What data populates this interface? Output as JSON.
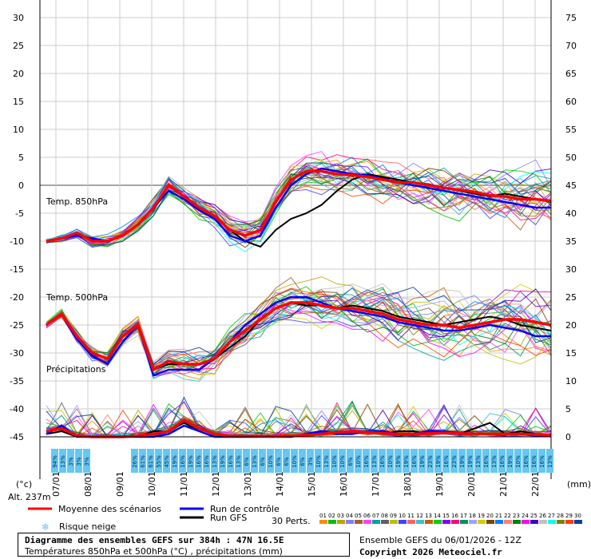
{
  "chart_data": {
    "type": "line",
    "left_axis": {
      "ticks": [
        30,
        25,
        20,
        15,
        10,
        5,
        0,
        -5,
        -10,
        -15,
        -20,
        -25,
        -30,
        -35,
        -40,
        -45
      ],
      "unit": "(°c)"
    },
    "right_axis": {
      "ticks": [
        75,
        70,
        65,
        60,
        55,
        50,
        45,
        40,
        35,
        30,
        25,
        20,
        15,
        10,
        5,
        0
      ],
      "unit": "(mm)"
    },
    "x_dates": [
      "07/01",
      "08/01",
      "09/01",
      "10/01",
      "11/01",
      "12/01",
      "13/01",
      "14/01",
      "15/01",
      "16/01",
      "17/01",
      "18/01",
      "19/01",
      "20/01",
      "21/01",
      "22/01"
    ],
    "panel_labels": {
      "t850": "Temp. 850hPa",
      "t500": "Temp. 500hPa",
      "precip": "Précipitations"
    },
    "altitude": "Alt. 237m",
    "snow_risk_percent_1": [
      "94%",
      "13%",
      "3%",
      "3%",
      "3%"
    ],
    "snow_risk_percent_2": [
      "26%",
      "61%",
      "61%",
      "55%",
      "45%",
      "19%",
      "16%",
      "19%",
      "16%",
      "16%",
      "13%",
      "19%",
      "16%",
      "13%",
      "6%",
      "13%",
      "6%",
      "10%",
      "6%",
      "6%",
      "10%",
      "6%",
      "3%",
      "10%",
      "13%",
      "10%",
      "10%",
      "6%",
      "10%",
      "16%",
      "13%",
      "16%",
      "10%",
      "19%",
      "19%",
      "16%",
      "19%",
      "23%",
      "19%",
      "16%",
      "23%",
      "19%",
      "19%",
      "13%",
      "16%",
      "13%",
      "16%",
      "19%",
      "10%",
      "16%",
      "16%",
      "16%",
      "13%"
    ],
    "t850_mean": [
      -10,
      -9.5,
      -8.5,
      -10,
      -10,
      -9,
      -7,
      -4,
      0,
      -2,
      -4,
      -5.5,
      -8,
      -9,
      -8,
      -3,
      1,
      2.5,
      2.5,
      2,
      1.8,
      1.5,
      1,
      0.5,
      0.5,
      0,
      -0.5,
      -0.8,
      -1.2,
      -1.8,
      -2,
      -2.5,
      -2.5,
      -2.8
    ],
    "t850_control": [
      -10,
      -9.5,
      -9,
      -9.5,
      -10,
      -9,
      -7,
      -4,
      -1,
      -2.5,
      -4.5,
      -6,
      -9,
      -10,
      -9,
      -4,
      0,
      2,
      3,
      2.5,
      2,
      1.8,
      1.2,
      0.5,
      0,
      -0.5,
      -1,
      -1.5,
      -2,
      -2.5,
      -3,
      -3.5,
      -4,
      -4
    ],
    "t850_gfs": [
      -10,
      -9.5,
      -8.8,
      -9.8,
      -10,
      -9,
      -7,
      -4,
      0,
      -2,
      -4,
      -5.5,
      -8,
      -10,
      -11,
      -8,
      -6,
      -5,
      -3.5,
      -1,
      1,
      2,
      1.5,
      1,
      0.5,
      0.2,
      -0.5,
      -1,
      -1.5,
      -2,
      -1.5,
      -2,
      -2.5,
      -3
    ],
    "t500_mean": [
      -25,
      -23,
      -27,
      -30,
      -31,
      -27,
      -25,
      -33,
      -31.5,
      -32,
      -32,
      -31,
      -28,
      -26,
      -24,
      -22,
      -21,
      -21,
      -21.5,
      -22,
      -22,
      -22.5,
      -23,
      -24,
      -24.5,
      -25,
      -25,
      -25.5,
      -25,
      -24.5,
      -24,
      -24,
      -24.5,
      -25
    ],
    "t500_control": [
      -25,
      -23,
      -27.5,
      -30.5,
      -32,
      -28,
      -25,
      -34,
      -33,
      -33,
      -33,
      -31,
      -28,
      -25,
      -23,
      -21,
      -20,
      -20,
      -21,
      -22,
      -22.5,
      -23,
      -23.5,
      -24.5,
      -25,
      -25.5,
      -26,
      -26,
      -25.5,
      -25,
      -25.5,
      -26,
      -27,
      -27
    ],
    "t500_gfs": [
      -25,
      -23,
      -27,
      -30,
      -31,
      -27,
      -25,
      -33,
      -32,
      -32,
      -32,
      -31,
      -29,
      -27,
      -24,
      -22,
      -21,
      -21.5,
      -21.5,
      -22,
      -21.5,
      -22,
      -22.5,
      -23.5,
      -24,
      -24.5,
      -25,
      -24.5,
      -24,
      -23.5,
      -24,
      -25,
      -25.5,
      -26
    ],
    "precip_mean_mm": [
      1,
      1.5,
      0.2,
      0,
      0,
      0,
      0.2,
      0.5,
      1,
      3,
      1.5,
      0.5,
      0.2,
      0.2,
      0.1,
      0.1,
      0.2,
      0.3,
      0.5,
      0.8,
      1,
      0.8,
      0.6,
      0.5,
      0.5,
      0.6,
      0.7,
      0.6,
      0.5,
      0.5,
      0.5,
      0.5,
      0.4,
      0.3
    ],
    "precip_control_mm": [
      0.5,
      2,
      0,
      0,
      0,
      0,
      0,
      0,
      0.5,
      2,
      1,
      0,
      0,
      0,
      0,
      0,
      0,
      0.5,
      1,
      0.5,
      0.5,
      1,
      1,
      0.5,
      0.5,
      1,
      1,
      0.5,
      0.5,
      0.5,
      0.5,
      0.5,
      0.2,
      0.2
    ],
    "precip_gfs_mm": [
      0.5,
      1,
      0,
      0,
      0,
      0,
      0,
      1,
      1,
      2.5,
      1,
      0,
      0,
      0,
      0,
      0,
      0,
      0.5,
      1,
      0.5,
      0.5,
      1,
      0.5,
      1,
      1,
      0.5,
      1,
      0.5,
      1.5,
      2.5,
      0.5,
      1,
      0.5,
      0.2
    ]
  },
  "legend": {
    "mean": "Moyenne des scénarios",
    "control": "Run de contrôle",
    "gfs": "Run GFS",
    "snow": "Risque neige",
    "perts": "30 Perts.",
    "perts_numbers": [
      "01",
      "02",
      "03",
      "04",
      "05",
      "06",
      "07",
      "08",
      "09",
      "10",
      "11",
      "12",
      "13",
      "14",
      "15",
      "16",
      "17",
      "18",
      "19",
      "20",
      "21",
      "22",
      "23",
      "24",
      "25",
      "26",
      "27",
      "28",
      "29",
      "30"
    ],
    "pert_colors": [
      "#ff8c00",
      "#00c000",
      "#c0a000",
      "#8080ff",
      "#a06030",
      "#ff40ff",
      "#00a0a0",
      "#606060",
      "#c0c000",
      "#4040ff",
      "#ff6060",
      "#40c0c0",
      "#c06000",
      "#00d000",
      "#8000ff",
      "#ff0080",
      "#009060",
      "#a0a0ff",
      "#d0d000",
      "#804000",
      "#0080ff",
      "#ff8080",
      "#008000",
      "#ff00ff",
      "#4000c0",
      "#c0c0c0",
      "#00ffff",
      "#808000",
      "#ff4000",
      "#0040a0"
    ],
    "colors": {
      "mean": "#ff0000",
      "control": "#0000ff",
      "gfs": "#000000",
      "snow": "#66c7f2"
    }
  },
  "footer": {
    "title": "Diagramme des ensembles GEFS sur 384h : 47N 16.5E",
    "subtitle": "Températures 850hPa et 500hPa (°C) , précipitations (mm)",
    "run": "Ensemble GEFS du 06/01/2026 - 12Z",
    "copyright": "Copyright 2026 Meteociel.fr"
  }
}
